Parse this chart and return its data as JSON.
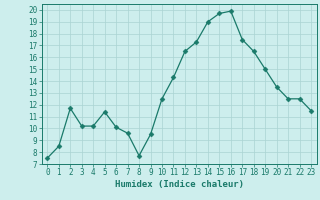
{
  "x": [
    0,
    1,
    2,
    3,
    4,
    5,
    6,
    7,
    8,
    9,
    10,
    11,
    12,
    13,
    14,
    15,
    16,
    17,
    18,
    19,
    20,
    21,
    22,
    23
  ],
  "y": [
    7.5,
    8.5,
    11.7,
    10.2,
    10.2,
    11.4,
    10.1,
    9.6,
    7.7,
    9.5,
    12.5,
    14.3,
    16.5,
    17.3,
    19.0,
    19.7,
    19.9,
    17.5,
    16.5,
    15.0,
    13.5,
    12.5,
    12.5,
    11.5
  ],
  "line_color": "#1a7a6a",
  "marker": "D",
  "marker_size": 2.5,
  "background_color": "#cdeeed",
  "grid_color": "#aad4d3",
  "xlabel": "Humidex (Indice chaleur)",
  "xlim": [
    -0.5,
    23.5
  ],
  "ylim": [
    7,
    20.5
  ],
  "yticks": [
    7,
    8,
    9,
    10,
    11,
    12,
    13,
    14,
    15,
    16,
    17,
    18,
    19,
    20
  ],
  "xticks": [
    0,
    1,
    2,
    3,
    4,
    5,
    6,
    7,
    8,
    9,
    10,
    11,
    12,
    13,
    14,
    15,
    16,
    17,
    18,
    19,
    20,
    21,
    22,
    23
  ],
  "tick_color": "#1a7a6a",
  "label_color": "#1a7a6a",
  "axis_color": "#1a7a6a",
  "xlabel_fontsize": 6.5,
  "tick_fontsize": 5.5
}
